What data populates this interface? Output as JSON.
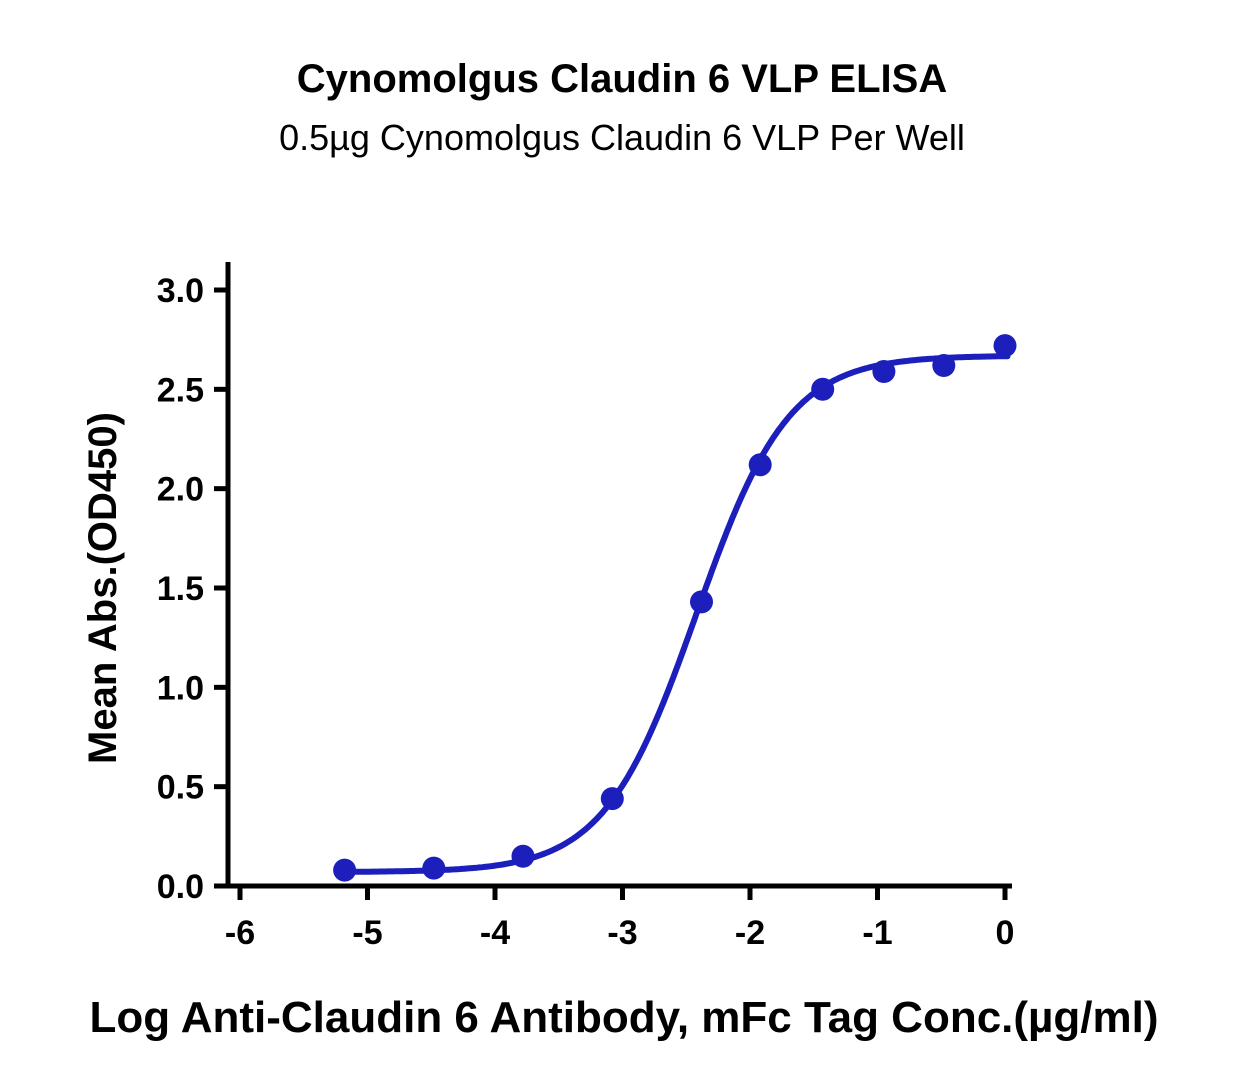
{
  "figure": {
    "background": "#ffffff"
  },
  "chart_data": {
    "type": "scatter",
    "title": "Cynomolgus Claudin 6 VLP ELISA",
    "subtitle": "0.5µg Cynomolgus Claudin 6 VLP Per Well",
    "xlabel": "Log Anti-Claudin 6 Antibody, mFc Tag Conc.(µg/ml)",
    "ylabel": "Mean Abs.(OD450)",
    "xlim": [
      -6,
      0.1
    ],
    "ylim": [
      0,
      3.0
    ],
    "x_ticks": [
      "-6",
      "-5",
      "-4",
      "-3",
      "-2",
      "-1",
      "0"
    ],
    "y_ticks": [
      "0.0",
      "0.5",
      "1.0",
      "1.5",
      "2.0",
      "2.5",
      "3.0"
    ],
    "grid": false,
    "legend": "none",
    "series": [
      {
        "name": "Anti-Claudin 6 Antibody, mFc Tag",
        "color": "#1c1fbb",
        "marker": "circle",
        "points": [
          [
            -5.18,
            0.08
          ],
          [
            -4.48,
            0.09
          ],
          [
            -3.78,
            0.15
          ],
          [
            -3.08,
            0.44
          ],
          [
            -2.38,
            1.43
          ],
          [
            -1.92,
            2.12
          ],
          [
            -1.43,
            2.5
          ],
          [
            -0.95,
            2.59
          ],
          [
            -0.48,
            2.62
          ],
          [
            0.0,
            2.72
          ]
        ],
        "fit": {
          "model": "4PL",
          "bottom": 0.07,
          "top": 2.67,
          "logEC50": -2.42,
          "hillslope": 1.2,
          "x_start": -5.18,
          "x_end": 0.03
        }
      }
    ]
  }
}
